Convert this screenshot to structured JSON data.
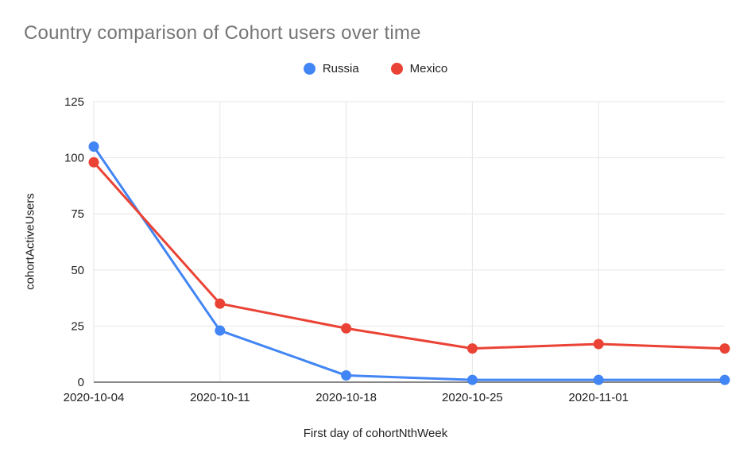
{
  "title": "Country comparison of Cohort users over time",
  "chart_data": {
    "type": "line",
    "title": "Country comparison of Cohort users over time",
    "xlabel": "First day of cohortNthWeek",
    "ylabel": "cohortActiveUsers",
    "x": [
      "2020-10-04",
      "2020-10-11",
      "2020-10-18",
      "2020-10-25",
      "2020-11-01",
      ""
    ],
    "series": [
      {
        "name": "Russia",
        "color": "#4285F4",
        "values": [
          105,
          23,
          3,
          1,
          1,
          1
        ]
      },
      {
        "name": "Mexico",
        "color": "#EA4335",
        "values": [
          98,
          35,
          24,
          15,
          17,
          15
        ]
      }
    ],
    "ylim": [
      0,
      125
    ],
    "yticks": [
      0,
      25,
      50,
      75,
      100,
      125
    ],
    "grid": true,
    "legend_position": "top"
  },
  "colors": {
    "title_text": "#757575",
    "axis_text": "#222222",
    "grid": "#E6E6E6",
    "baseline": "#616161",
    "background": "#FFFFFF"
  }
}
